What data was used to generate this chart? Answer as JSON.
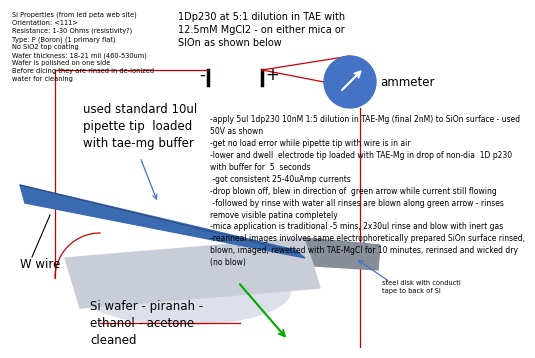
{
  "title": "1Dp230 at 5:1 dilution in TAE with\n12.5mM MgCl2 - on either mica or\nSIOn as shown below",
  "si_properties": "Si Properties (from led peta web site)\nOrientation: <111>\nResistance: 1-30 Ohms (resistivity?)\nType: P (Boron) (1 primary flat)\nNo SiO2 top coating\nWafer thickness: 18-21 mil (460-530um)\nWafer is polished on one side\nBefore dicing they are rinsed in de-ionized\nwater for cleaning",
  "label_pipette": "used standard 10ul\npipette tip  loaded\nwith tae-mg buffer",
  "label_wafer": "Si wafer - piranah -\nethanol - acetone\ncleaned",
  "label_wwire": "W wire",
  "label_ammeter": "ammeter",
  "label_steel": "steel disk with conducti\ntape to back of Si",
  "minus_label": "-",
  "plus_label": "+",
  "notes": "-apply 5ul 1dp230 10nM 1:5 dilution in TAE-Mg (final 2nM) to SiOn surface - used\n50V as shown\n-get no load error while pipette tip with wire is in air\n-lower and dwell  electrode tip loaded with TAE-Mg in drop of non-dia  1D p230\nwith buffer for  5  seconds\n -got consistent 25-40uAmp currents\n-drop blown off, blew in direction of  green arrow while current still flowing\n -followed by rinse with water all rinses are blown along green arrow - rinses\nremove visible patina completely\n-mica application is traditional -5 mins, 2x30ul rinse and blow with inert gas\n-reanneal images involves same electrophoretically prepared SiOn surface rinsed,\nblown, imaged, rewetted with TAE-MgCl for 10 minutes, rerinsed and wicked dry\n(no blow)",
  "bg_color": "#ffffff",
  "wafer_color": "#c8cdd8",
  "ellipse_color": "#dde0e8",
  "pipette_color": "#3a6ab0",
  "pipette_dark": "#2a4a80",
  "steel_color": "#888e98",
  "circle_color": "#4472c4",
  "wire_color": "#cc0000",
  "green_arrow_color": "#00aa00",
  "blue_arrow_color": "#4472c4",
  "text_color": "#000000",
  "small_font": 4.8,
  "notes_font": 5.5,
  "label_font": 8.5,
  "title_font": 7.0,
  "elec_font": 12
}
